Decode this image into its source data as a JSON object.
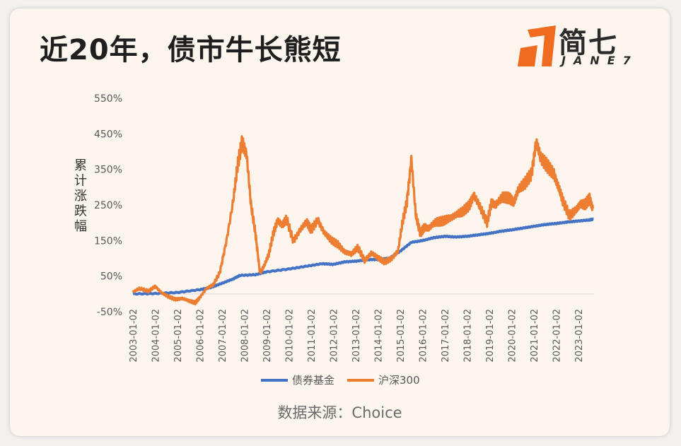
{
  "header": {
    "title": "近20年，债市牛长熊短",
    "logo_cn": "简七",
    "logo_en": "JANE7",
    "logo_color": "#f06a20"
  },
  "source": "数据来源：Choice",
  "chart_data": {
    "type": "line",
    "title": "近20年，债市牛长熊短",
    "ylabel": "累计涨跌幅",
    "ylim": [
      -50,
      550
    ],
    "yticks": [
      -50,
      50,
      150,
      250,
      350,
      450,
      550
    ],
    "ytick_labels": [
      "-50%",
      "50%",
      "150%",
      "250%",
      "350%",
      "450%",
      "550%"
    ],
    "xlim": [
      2003.0,
      2023.7
    ],
    "xticks": [
      2003,
      2004,
      2005,
      2006,
      2007,
      2008,
      2009,
      2010,
      2011,
      2012,
      2013,
      2014,
      2015,
      2016,
      2017,
      2018,
      2019,
      2020,
      2021,
      2022,
      2023
    ],
    "xtick_labels": [
      "2003-01-02",
      "2004-01-02",
      "2005-01-02",
      "2006-01-02",
      "2007-01-02",
      "2008-01-02",
      "2009-01-02",
      "2010-01-02",
      "2011-01-02",
      "2012-01-02",
      "2013-01-02",
      "2014-01-02",
      "2015-01-02",
      "2016-01-02",
      "2017-01-02",
      "2018-01-02",
      "2019-01-02",
      "2020-01-02",
      "2021-01-02",
      "2022-01-02",
      "2023-01-02"
    ],
    "legend_position": "bottom",
    "grid": false,
    "series": [
      {
        "name": "债券基金",
        "color": "#4472c4",
        "x": [
          2003.0,
          2004.0,
          2005.0,
          2006.0,
          2006.5,
          2007.0,
          2007.5,
          2007.8,
          2008.5,
          2009.0,
          2010.0,
          2010.8,
          2011.5,
          2012.0,
          2012.5,
          2013.0,
          2013.5,
          2014.0,
          2014.5,
          2015.0,
          2015.5,
          2016.0,
          2016.5,
          2017.0,
          2017.5,
          2018.0,
          2018.5,
          2019.0,
          2019.5,
          2020.0,
          2020.5,
          2021.0,
          2021.5,
          2022.0,
          2022.5,
          2023.0,
          2023.5,
          2023.65
        ],
        "y": [
          0,
          1,
          4,
          12,
          18,
          30,
          42,
          52,
          54,
          62,
          70,
          78,
          85,
          83,
          90,
          92,
          96,
          97,
          100,
          120,
          145,
          150,
          158,
          162,
          160,
          162,
          166,
          170,
          176,
          180,
          185,
          190,
          195,
          198,
          202,
          205,
          208,
          210
        ]
      },
      {
        "name": "沪深300",
        "color": "#ed7d31",
        "x": [
          2003.0,
          2003.3,
          2003.7,
          2004.0,
          2004.3,
          2004.6,
          2004.9,
          2005.2,
          2005.5,
          2005.8,
          2006.0,
          2006.3,
          2006.6,
          2006.9,
          2007.2,
          2007.5,
          2007.7,
          2007.9,
          2008.1,
          2008.3,
          2008.5,
          2008.7,
          2008.9,
          2009.1,
          2009.3,
          2009.5,
          2009.7,
          2009.9,
          2010.2,
          2010.5,
          2010.8,
          2011.0,
          2011.3,
          2011.6,
          2011.9,
          2012.2,
          2012.5,
          2012.8,
          2013.1,
          2013.4,
          2013.7,
          2014.0,
          2014.3,
          2014.6,
          2014.9,
          2015.1,
          2015.3,
          2015.5,
          2015.7,
          2015.9,
          2016.1,
          2016.3,
          2016.6,
          2016.9,
          2017.2,
          2017.5,
          2017.8,
          2018.1,
          2018.3,
          2018.6,
          2018.9,
          2019.1,
          2019.3,
          2019.6,
          2019.9,
          2020.1,
          2020.3,
          2020.6,
          2020.9,
          2021.1,
          2021.3,
          2021.6,
          2021.9,
          2022.1,
          2022.3,
          2022.6,
          2022.9,
          2023.1,
          2023.3,
          2023.5,
          2023.65
        ],
        "y": [
          5,
          15,
          8,
          22,
          2,
          -8,
          -15,
          -12,
          -20,
          -25,
          -10,
          15,
          25,
          60,
          150,
          260,
          360,
          430,
          395,
          250,
          170,
          60,
          80,
          110,
          170,
          210,
          190,
          210,
          150,
          180,
          200,
          180,
          210,
          170,
          150,
          140,
          120,
          110,
          130,
          95,
          115,
          100,
          90,
          100,
          120,
          200,
          260,
          380,
          220,
          170,
          190,
          185,
          200,
          205,
          215,
          220,
          230,
          250,
          280,
          240,
          200,
          260,
          250,
          270,
          270,
          260,
          290,
          310,
          340,
          430,
          380,
          360,
          340,
          300,
          260,
          220,
          240,
          250,
          250,
          270,
          240
        ]
      }
    ]
  }
}
